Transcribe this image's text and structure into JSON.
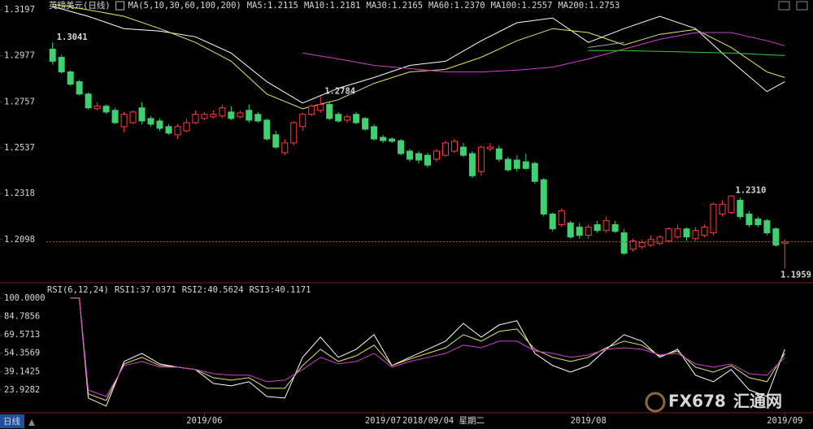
{
  "chart_data": [
    {
      "type": "candlestick",
      "title": "英镑美元(日线)",
      "indicator": "MA(5,10,30,60,100,200)",
      "xlim": [
        -0.7,
        84.7
      ],
      "ylim": [
        1.1895,
        1.3244
      ],
      "yticks": [
        1.2098,
        1.2318,
        1.2537,
        1.2757,
        1.2977,
        1.3197
      ],
      "up_color": "#ff3c3c",
      "down_color": "#3fd070",
      "open": [
        1.3009,
        1.297,
        1.29,
        1.2853,
        1.2794,
        1.2724,
        1.2736,
        1.2716,
        1.2638,
        1.2657,
        1.2728,
        1.2677,
        1.2665,
        1.2638,
        1.2599,
        1.2618,
        1.2657,
        1.2677,
        1.2685,
        1.2689,
        1.2708,
        1.2685,
        1.2716,
        1.2697,
        1.2669,
        1.2599,
        1.2513,
        1.256,
        1.2638,
        1.2697,
        1.2716,
        1.2744,
        1.2697,
        1.2669,
        1.2697,
        1.2677,
        1.2638,
        1.2587,
        1.2579,
        1.2571,
        1.2521,
        1.2509,
        1.2501,
        1.2482,
        1.2501,
        1.2521,
        1.254,
        1.2509,
        1.2423,
        1.2532,
        1.2532,
        1.2482,
        1.2478,
        1.247,
        1.2462,
        1.2384,
        1.222,
        1.2169,
        1.2177,
        1.2157,
        1.2118,
        1.2169,
        1.2141,
        1.2169,
        1.213,
        1.2052,
        1.2063,
        1.2071,
        1.2079,
        1.2091,
        1.211,
        1.2149,
        1.2102,
        1.2118,
        1.213,
        1.222,
        1.2227,
        1.2286,
        1.222,
        1.2196,
        1.2188,
        1.2149,
        1.2079
      ],
      "high": [
        1.3041,
        1.2982,
        1.2908,
        1.2861,
        1.2802,
        1.2755,
        1.2744,
        1.2728,
        1.2708,
        1.2716,
        1.2755,
        1.2689,
        1.2677,
        1.265,
        1.265,
        1.2677,
        1.2716,
        1.2708,
        1.2716,
        1.2744,
        1.2736,
        1.2716,
        1.2744,
        1.2708,
        1.2677,
        1.2618,
        1.2579,
        1.2665,
        1.2704,
        1.2744,
        1.2784,
        1.2755,
        1.2708,
        1.2697,
        1.2708,
        1.2685,
        1.265,
        1.2599,
        1.2587,
        1.2579,
        1.2532,
        1.2521,
        1.2513,
        1.2532,
        1.2571,
        1.2579,
        1.256,
        1.2521,
        1.2548,
        1.256,
        1.2548,
        1.2493,
        1.2501,
        1.2509,
        1.247,
        1.2392,
        1.2227,
        1.2247,
        1.2188,
        1.2177,
        1.2169,
        1.2188,
        1.2208,
        1.2188,
        1.2149,
        1.2102,
        1.2098,
        1.2118,
        1.2118,
        1.2157,
        1.2169,
        1.2157,
        1.2157,
        1.2169,
        1.2275,
        1.2286,
        1.231,
        1.2298,
        1.2235,
        1.2208,
        1.2196,
        1.2157,
        1.2098
      ],
      "low": [
        1.2935,
        1.2892,
        1.2833,
        1.2787,
        1.272,
        1.2716,
        1.27,
        1.265,
        1.2611,
        1.265,
        1.265,
        1.2638,
        1.2618,
        1.2599,
        1.2579,
        1.2611,
        1.265,
        1.2669,
        1.2677,
        1.2677,
        1.2669,
        1.2677,
        1.2657,
        1.2657,
        1.2571,
        1.2532,
        1.2501,
        1.2548,
        1.2618,
        1.2689,
        1.2704,
        1.2669,
        1.2657,
        1.2657,
        1.265,
        1.2618,
        1.2571,
        1.256,
        1.256,
        1.2501,
        1.247,
        1.2462,
        1.2442,
        1.247,
        1.2493,
        1.2513,
        1.2493,
        1.2392,
        1.2403,
        1.2521,
        1.247,
        1.2423,
        1.2423,
        1.2431,
        1.2364,
        1.2208,
        1.2137,
        1.2157,
        1.2102,
        1.2102,
        1.2102,
        1.213,
        1.213,
        1.213,
        1.2024,
        1.204,
        1.2052,
        1.2063,
        1.2071,
        1.2083,
        1.2102,
        1.2091,
        1.2091,
        1.211,
        1.2118,
        1.2208,
        1.222,
        1.2196,
        1.2157,
        1.2157,
        1.2118,
        1.2063,
        1.1959
      ],
      "close": [
        1.2951,
        1.29,
        1.2841,
        1.2794,
        1.2728,
        1.2736,
        1.2708,
        1.2657,
        1.2697,
        1.2708,
        1.2665,
        1.265,
        1.263,
        1.2607,
        1.2638,
        1.2657,
        1.2697,
        1.2697,
        1.2697,
        1.2728,
        1.2677,
        1.2704,
        1.2669,
        1.2665,
        1.2579,
        1.254,
        1.256,
        1.2657,
        1.2697,
        1.2736,
        1.2744,
        1.2677,
        1.2665,
        1.2685,
        1.2657,
        1.2626,
        1.2579,
        1.2571,
        1.2568,
        1.2509,
        1.2482,
        1.2478,
        1.2454,
        1.2521,
        1.256,
        1.2568,
        1.2501,
        1.2403,
        1.254,
        1.254,
        1.2482,
        1.2431,
        1.2438,
        1.2438,
        1.2376,
        1.222,
        1.2149,
        1.2235,
        1.211,
        1.2118,
        1.2157,
        1.2141,
        1.2188,
        1.2137,
        1.2032,
        1.2091,
        1.2083,
        1.2098,
        1.211,
        1.2149,
        1.2149,
        1.211,
        1.2141,
        1.2157,
        1.2267,
        1.2267,
        1.2306,
        1.2208,
        1.2169,
        1.2169,
        1.213,
        1.2071,
        1.2087
      ],
      "annotations": [
        {
          "x": 0,
          "value": 1.3041,
          "label": "1.3041"
        },
        {
          "x": 30,
          "value": 1.2784,
          "label": "1.2784"
        },
        {
          "x": 76,
          "value": 1.231,
          "label": "1.2310"
        },
        {
          "x": 82,
          "value": 1.1959,
          "label": "1.1959"
        }
      ],
      "ma_x": [
        0,
        4,
        8,
        12,
        16,
        20,
        24,
        28,
        32,
        36,
        40,
        44,
        48,
        52,
        56,
        60,
        64,
        68,
        72,
        76,
        80,
        82
      ],
      "series": [
        {
          "name": "MA5:1.2115",
          "color": "#ffffff",
          "values": [
            1.3213,
            1.3166,
            1.3107,
            1.3095,
            1.3068,
            1.299,
            1.2853,
            1.2751,
            1.2822,
            1.2873,
            1.2931,
            1.2951,
            1.3049,
            1.3135,
            1.3158,
            1.3041,
            1.3107,
            1.3166,
            1.3107,
            1.2951,
            1.2806,
            1.2853
          ]
        },
        {
          "name": "MA10:1.2181",
          "color": "#e6e664",
          "values": [
            1.3224,
            1.3197,
            1.3166,
            1.3107,
            1.3041,
            1.2951,
            1.2794,
            1.2724,
            1.2767,
            1.2845,
            1.29,
            1.2912,
            1.297,
            1.3049,
            1.3107,
            1.3088,
            1.3029,
            1.308,
            1.3103,
            1.3017,
            1.29,
            1.2873
          ]
        },
        {
          "name": "MA30:1.2165",
          "color": "#d040d0",
          "values": [
            null,
            null,
            null,
            null,
            null,
            null,
            null,
            1.299,
            1.2962,
            1.2931,
            1.2916,
            1.29,
            1.29,
            1.2908,
            1.2923,
            1.2962,
            1.3009,
            1.3056,
            1.3088,
            1.3088,
            1.3049,
            1.3025
          ]
        },
        {
          "name": "MA60:1.2370",
          "color": "#3cc83c",
          "values": [
            null,
            null,
            null,
            null,
            null,
            null,
            null,
            null,
            null,
            null,
            null,
            null,
            null,
            null,
            null,
            1.3002,
            1.3002,
            1.2998,
            1.2994,
            1.299,
            1.2982,
            1.2978
          ]
        },
        {
          "name": "MA100:1.2557",
          "color": "#a8a8a8",
          "values": [
            null,
            null,
            null,
            null,
            null,
            null,
            null,
            null,
            null,
            null,
            null,
            null,
            null,
            null,
            null,
            1.3017,
            1.3041,
            null,
            null,
            null,
            null,
            null
          ]
        },
        {
          "name": "MA200:1.2753",
          "color": "#ff4040"
        }
      ]
    },
    {
      "type": "line",
      "title": "RSI(6,12,24)",
      "xlim": [
        -0.7,
        84.7
      ],
      "ylim": [
        5,
        111.4
      ],
      "yticks": [
        {
          "value": 23.9282,
          "label": "23.9282"
        },
        {
          "value": 39.1425,
          "label": "39.1425"
        },
        {
          "value": 54.3569,
          "label": "54.3569"
        },
        {
          "value": 69.5713,
          "label": "69.5713"
        },
        {
          "value": 84.7856,
          "label": "84.7856"
        },
        {
          "value": 100,
          "label": "100.0000"
        }
      ],
      "xticks": [
        {
          "value": 17,
          "label": "2019/06"
        },
        {
          "value": 37,
          "label": "2019/07"
        },
        {
          "value": 60,
          "label": "2019/08"
        },
        {
          "value": 82,
          "label": "2019/09"
        }
      ],
      "x": [
        2,
        3,
        4,
        6,
        8,
        10,
        12,
        14,
        16,
        18,
        20,
        22,
        24,
        26,
        28,
        30,
        32,
        34,
        36,
        38,
        40,
        42,
        44,
        46,
        48,
        50,
        52,
        54,
        56,
        58,
        60,
        62,
        64,
        66,
        68,
        70,
        72,
        74,
        76,
        78,
        80,
        82
      ],
      "series": [
        {
          "name": "RSI1:37.0371",
          "color": "#ffffff",
          "values": [
            100,
            100,
            17.2,
            10.5,
            47.5,
            54.2,
            45.5,
            42.8,
            40.8,
            29.3,
            27.3,
            30.7,
            18.5,
            17.2,
            50.9,
            67.7,
            50.9,
            57.6,
            69.7,
            44.1,
            50.9,
            57.6,
            64.3,
            79.1,
            67.7,
            77.8,
            81.2,
            54.2,
            44.1,
            38.7,
            44.1,
            57.6,
            69.7,
            64.3,
            50.9,
            57.6,
            36.1,
            30.7,
            40.8,
            23.9,
            18.5,
            57.6
          ]
        },
        {
          "name": "RSI2:40.5624",
          "color": "#e6e664",
          "values": [
            100,
            100,
            20.6,
            15.2,
            45.5,
            50.9,
            44.1,
            42.8,
            40.8,
            34.0,
            32.0,
            34.0,
            25.3,
            25.3,
            44.1,
            57.6,
            47.5,
            52.2,
            61.0,
            44.1,
            49.5,
            54.2,
            58.9,
            69.7,
            64.3,
            72.4,
            74.4,
            57.6,
            50.9,
            47.5,
            50.9,
            58.9,
            64.3,
            61.0,
            52.2,
            56.2,
            42.8,
            38.7,
            44.1,
            34.0,
            30.7,
            54.2
          ]
        },
        {
          "name": "RSI3:40.1171",
          "color": "#d040d0",
          "values": [
            100,
            100,
            23.9,
            18.5,
            44.1,
            47.5,
            42.8,
            42.8,
            40.8,
            37.4,
            36.1,
            36.1,
            30.7,
            32.0,
            40.8,
            50.9,
            45.5,
            47.5,
            54.2,
            42.8,
            47.5,
            50.9,
            54.2,
            61.0,
            58.9,
            64.3,
            64.3,
            56.2,
            54.2,
            50.9,
            52.9,
            57.6,
            58.9,
            57.6,
            52.9,
            54.2,
            45.5,
            42.8,
            45.5,
            37.4,
            36.1,
            50.9
          ]
        }
      ]
    }
  ],
  "cursor_date": "2018/09/04 星期二",
  "tab": "日线",
  "watermark": {
    "brand": "FX678",
    "name": "汇通网"
  }
}
